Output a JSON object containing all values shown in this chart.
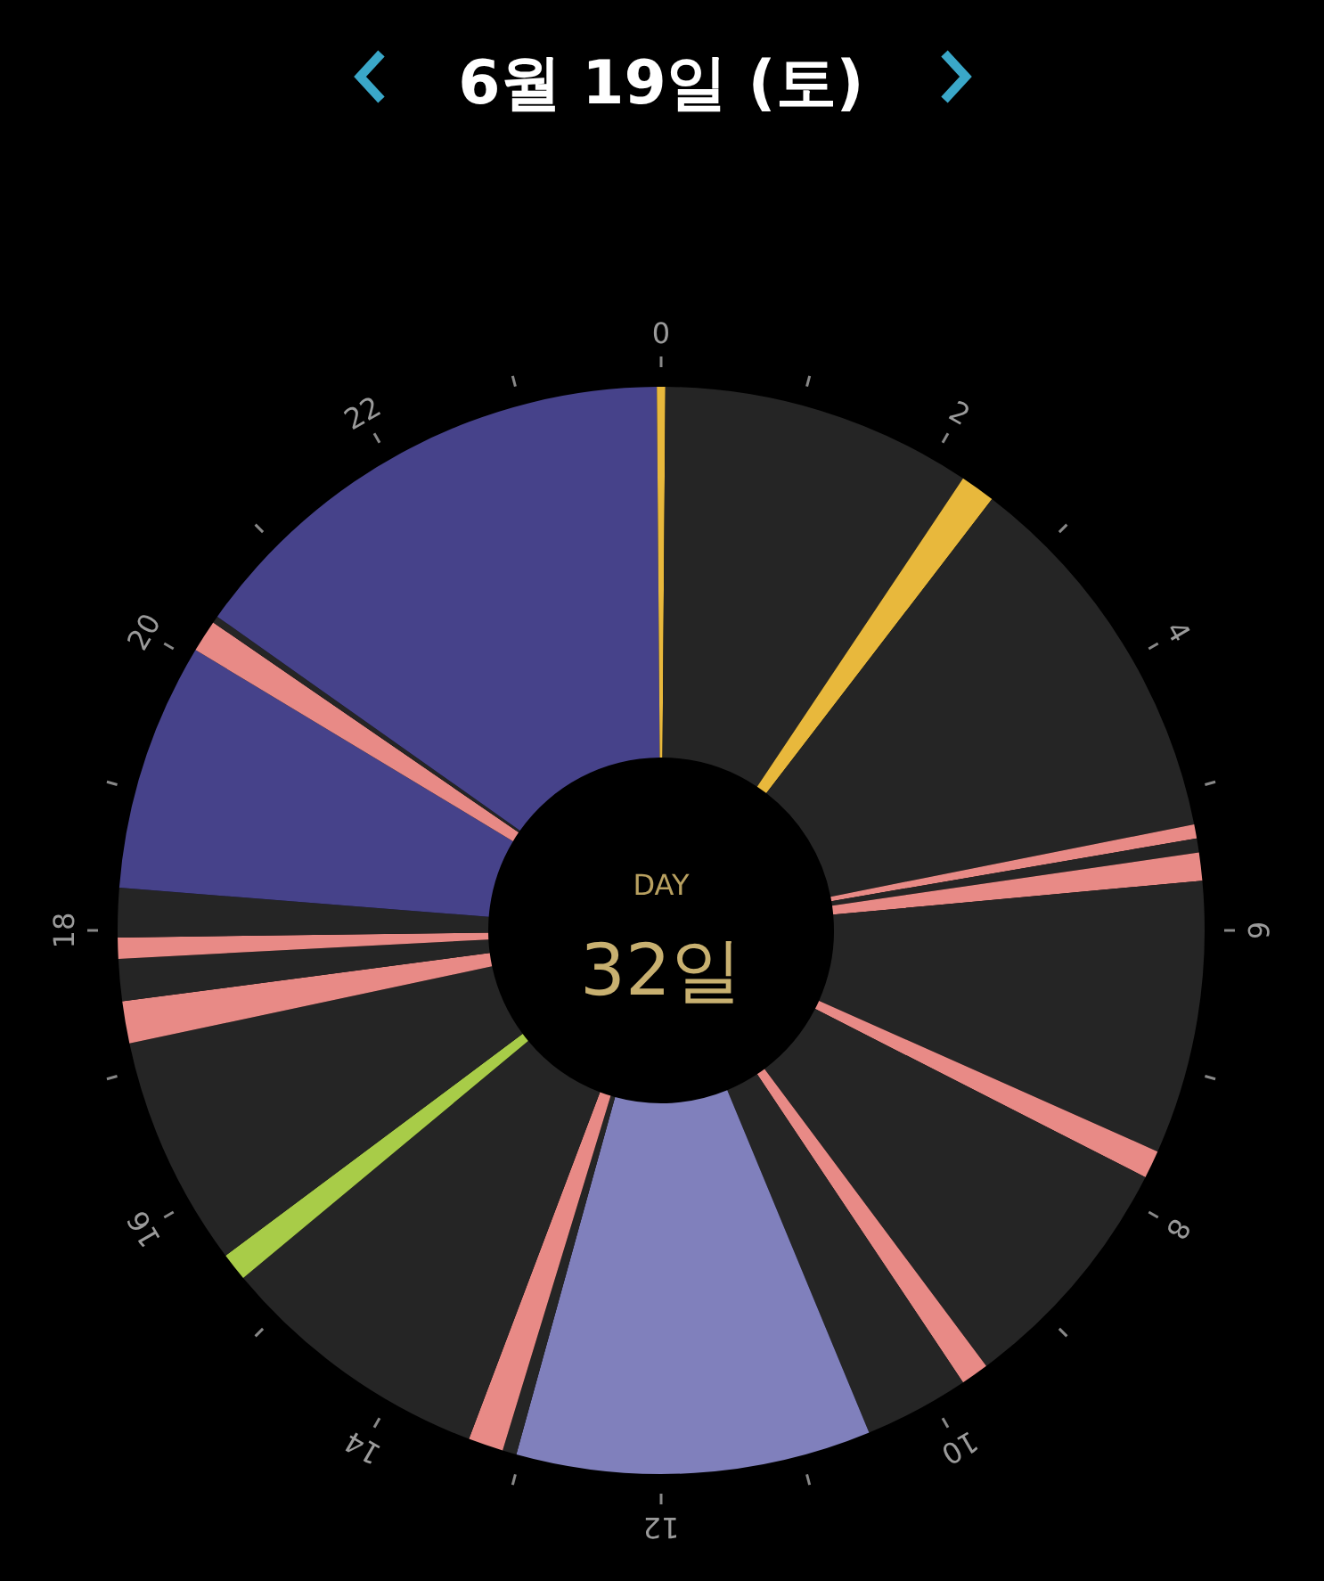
{
  "chart_data": {
    "type": "donut",
    "title": "6월 19일 (토)",
    "categories": [
      null,
      null,
      null,
      null,
      null,
      null,
      null,
      null,
      null,
      null,
      null,
      null,
      null,
      null,
      null,
      null,
      null,
      null,
      null,
      null,
      null,
      null,
      null,
      null,
      null,
      null,
      null
    ],
    "values": [
      0.125,
      9.25,
      1.042,
      11.458,
      0.417,
      0.417,
      0.833,
      8.125,
      0.833,
      7.292,
      0.833,
      3.125,
      10.542,
      0.417,
      1.042,
      8.208,
      0.833,
      6.875,
      1.25,
      1.25,
      0.625,
      1.458,
      7.375,
      0.958,
      0.208,
      15.083,
      0.125
    ],
    "colors": [
      "#e8b83c",
      "#252525",
      "#e8b83c",
      "#252525",
      "#e88a86",
      "#252525",
      "#e88a86",
      "#252525",
      "#e88a86",
      "#252525",
      "#e88a86",
      "#252525",
      "#8080bc",
      "#252525",
      "#e88a86",
      "#252525",
      "#a8cc48",
      "#252525",
      "#e88a86",
      "#252525",
      "#e88a86",
      "#252525",
      "#46428a",
      "#e88a86",
      "#252525",
      "#46428a",
      "#e8b83c"
    ],
    "annotations": [
      "DAY",
      "32일",
      "0",
      "2",
      "4",
      "6",
      "8",
      "10",
      "12",
      "14",
      "16",
      "18",
      "20",
      "22"
    ]
  }
}
